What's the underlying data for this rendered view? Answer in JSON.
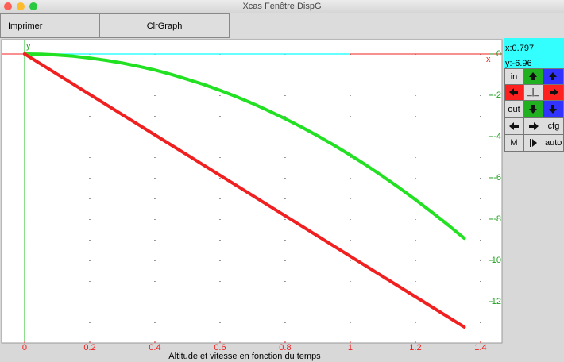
{
  "window": {
    "title": "Xcas Fenêtre DispG",
    "buttons": [
      "Imprimer",
      "ClrGraph"
    ],
    "cursor": {
      "x": "x:0.797",
      "y": "y:-6.96"
    },
    "controls": [
      "in",
      "_|_",
      "out",
      "cfg",
      "M",
      "auto"
    ]
  },
  "chart_data": {
    "type": "line",
    "title": "Altitude et vitesse en fonction du temps",
    "x_label": "x",
    "y_label": "y",
    "x": [
      0,
      0.05,
      0.1,
      0.15,
      0.2,
      0.25,
      0.3,
      0.35,
      0.4,
      0.45,
      0.5,
      0.55,
      0.6,
      0.65,
      0.7,
      0.75,
      0.8,
      0.85,
      0.9,
      0.95,
      1.0,
      1.05,
      1.1,
      1.15,
      1.2,
      1.25,
      1.3,
      1.35
    ],
    "series": [
      {
        "color": "#22e022",
        "values": [
          0,
          -0.01,
          -0.05,
          -0.11,
          -0.2,
          -0.31,
          -0.44,
          -0.6,
          -0.78,
          -0.99,
          -1.23,
          -1.48,
          -1.76,
          -2.07,
          -2.4,
          -2.76,
          -3.14,
          -3.54,
          -3.97,
          -4.42,
          -4.9,
          -5.4,
          -5.93,
          -6.48,
          -7.06,
          -7.66,
          -8.28,
          -8.93
        ]
      },
      {
        "color": "#f02020",
        "values": [
          0,
          -0.49,
          -0.98,
          -1.47,
          -1.96,
          -2.45,
          -2.94,
          -3.43,
          -3.92,
          -4.41,
          -4.9,
          -5.39,
          -5.88,
          -6.37,
          -6.86,
          -7.35,
          -7.84,
          -8.33,
          -8.82,
          -9.31,
          -9.8,
          -10.29,
          -10.78,
          -11.27,
          -11.76,
          -12.25,
          -12.74,
          -13.23
        ]
      }
    ],
    "xlim": [
      -0.0707,
      1.466
    ],
    "ylim": [
      -14,
      0.69
    ],
    "xticks": [
      0,
      0.2,
      0.4,
      0.6,
      0.8,
      1,
      1.2,
      1.4
    ],
    "yticks": [
      0,
      -2,
      -4,
      -6,
      -8,
      -10,
      -12
    ],
    "grid": true
  }
}
